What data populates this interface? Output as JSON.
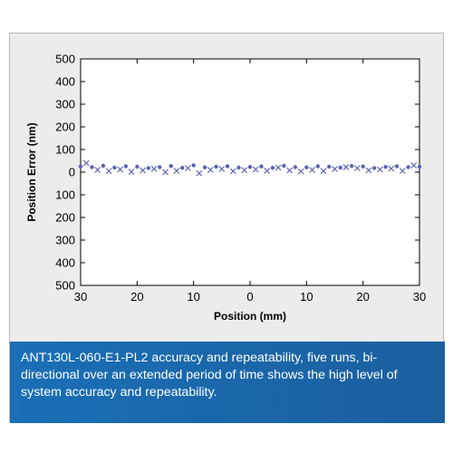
{
  "caption": "ANT130L-060-E1-PL2 accuracy and repeatability, five runs, bi-directional over an extended period of time shows the high level of system accuracy and repeatability.",
  "colors": {
    "series": "#5a62b0",
    "caption_bg": "#1a6fb6"
  },
  "chart_data": {
    "type": "scatter",
    "title": "",
    "xlabel": "Position (mm)",
    "ylabel": "Position Error (nm)",
    "xlim": [
      -30,
      30
    ],
    "ylim": [
      -500,
      500
    ],
    "x_ticks": [
      -30,
      -20,
      -10,
      0,
      10,
      20,
      30
    ],
    "x_tick_labels": [
      "30",
      "20",
      "10",
      "0",
      "10",
      "20",
      "30"
    ],
    "y_ticks": [
      500,
      400,
      300,
      200,
      100,
      0,
      -100,
      -200,
      -300,
      -400,
      -500
    ],
    "y_tick_labels": [
      "500",
      "400",
      "300",
      "200",
      "100",
      "0",
      "100",
      "200",
      "300",
      "400",
      "500"
    ],
    "grid": false,
    "series": [
      {
        "marker": "dot",
        "x": [
          -30,
          -28,
          -26,
          -24,
          -22,
          -20,
          -18,
          -16,
          -14,
          -12,
          -10,
          -8,
          -6,
          -4,
          -2,
          0,
          2,
          4,
          6,
          8,
          10,
          12,
          14,
          16,
          18,
          20,
          22,
          24,
          26,
          28,
          30
        ],
        "y": [
          25,
          22,
          28,
          20,
          26,
          24,
          18,
          22,
          27,
          19,
          30,
          21,
          24,
          26,
          20,
          23,
          25,
          19,
          28,
          22,
          21,
          26,
          24,
          20,
          27,
          25,
          18,
          23,
          26,
          22,
          24
        ]
      },
      {
        "marker": "cross",
        "x": [
          -29,
          -27,
          -25,
          -23,
          -21,
          -19,
          -17,
          -15,
          -13,
          -11,
          -9,
          -7,
          -5,
          -3,
          -1,
          1,
          3,
          5,
          7,
          9,
          11,
          13,
          15,
          17,
          19,
          21,
          23,
          25,
          27,
          29
        ],
        "y": [
          40,
          10,
          5,
          12,
          2,
          8,
          15,
          0,
          6,
          18,
          -5,
          10,
          14,
          4,
          9,
          12,
          6,
          20,
          8,
          3,
          10,
          5,
          14,
          22,
          18,
          8,
          12,
          16,
          6,
          30
        ]
      }
    ]
  }
}
